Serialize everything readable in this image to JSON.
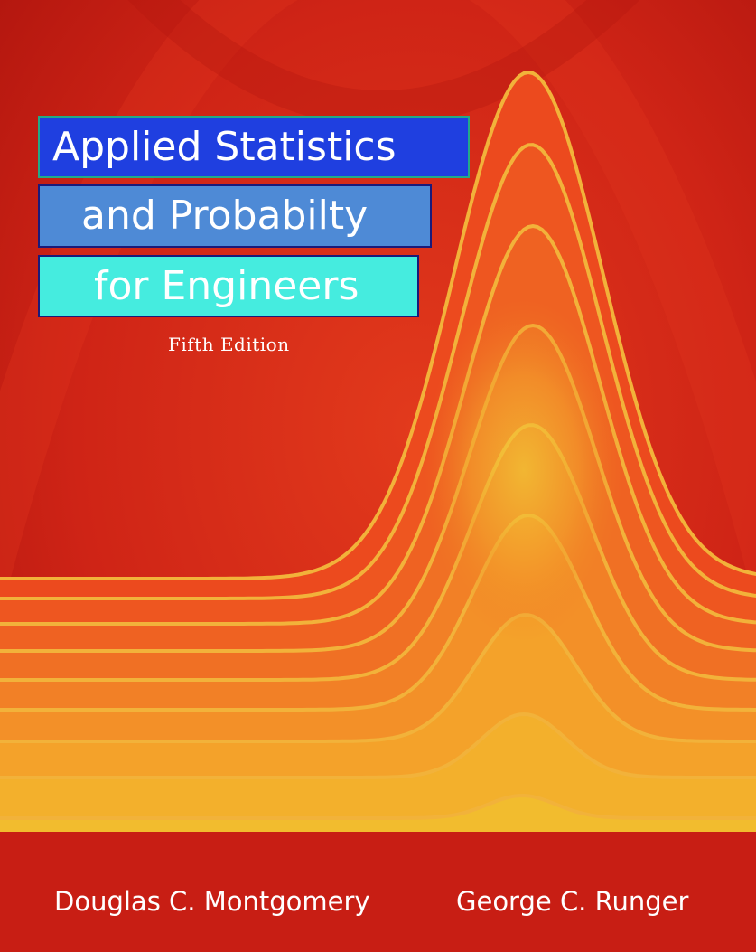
{
  "cover": {
    "title_line_1": "Applied Statistics",
    "title_line_2": "and Probabilty",
    "title_line_3": "for Engineers",
    "edition": "Fifth Edition",
    "authors": [
      "Douglas C. Montgomery",
      "George C. Runger"
    ]
  },
  "colors": {
    "background": "#c81e14",
    "band_1": "#1f3fe0",
    "band_2": "#4e8ad6",
    "band_3": "#45ecdf",
    "curve_edge": "#f2b23a",
    "curve_core": "#f0d83a"
  }
}
